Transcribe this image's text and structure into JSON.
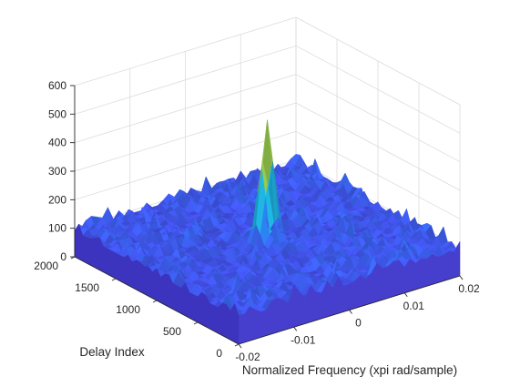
{
  "chart_data": {
    "type": "surface",
    "title": "",
    "xlabel": "Normalized Frequency (xpi rad/sample)",
    "ylabel": "Delay Index",
    "zlabel": "",
    "xlim": [
      -0.02,
      0.02
    ],
    "ylim": [
      0,
      2000
    ],
    "zlim": [
      0,
      600
    ],
    "x_ticks": [
      "-0.02",
      "-0.01",
      "0",
      "0.01",
      "0.02"
    ],
    "y_ticks": [
      "0",
      "500",
      "1000",
      "1500",
      "2000"
    ],
    "z_ticks": [
      "0",
      "100",
      "200",
      "300",
      "400",
      "500",
      "600"
    ],
    "grid": true,
    "colormap": "parula",
    "colormap_stops": [
      "#3e26a8",
      "#4a43e8",
      "#2f7ffb",
      "#1caadf",
      "#26c8a0",
      "#8fca52",
      "#e8bb2c",
      "#f9e70f"
    ],
    "floor_level": 90,
    "noise_amplitude": 70,
    "peak": {
      "x": 0.0,
      "y": 1000,
      "z": 513
    }
  }
}
